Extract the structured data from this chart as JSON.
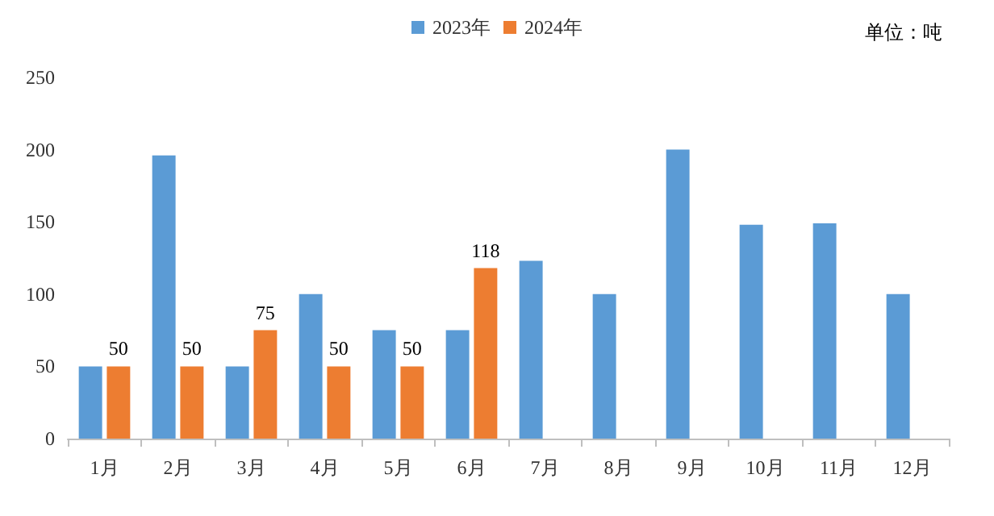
{
  "chart_data": {
    "type": "bar",
    "categories": [
      "1月",
      "2月",
      "3月",
      "4月",
      "5月",
      "6月",
      "7月",
      "8月",
      "9月",
      "10月",
      "11月",
      "12月"
    ],
    "series": [
      {
        "name": "2023年",
        "color": "#5b9bd5",
        "values": [
          50,
          196,
          50,
          100,
          75,
          75,
          123,
          100,
          200,
          148,
          149,
          100
        ]
      },
      {
        "name": "2024年",
        "color": "#ed7d31",
        "values": [
          50,
          50,
          75,
          50,
          50,
          118,
          null,
          null,
          null,
          null,
          null,
          null
        ],
        "value_labels": [
          "50",
          "50",
          "75",
          "50",
          "50",
          "118",
          null,
          null,
          null,
          null,
          null,
          null
        ]
      }
    ],
    "ylim": [
      0,
      250
    ],
    "yticks": [
      0,
      50,
      100,
      150,
      200,
      250
    ],
    "grid": false,
    "legend": "top",
    "annotations": [
      "单位：吨"
    ]
  }
}
